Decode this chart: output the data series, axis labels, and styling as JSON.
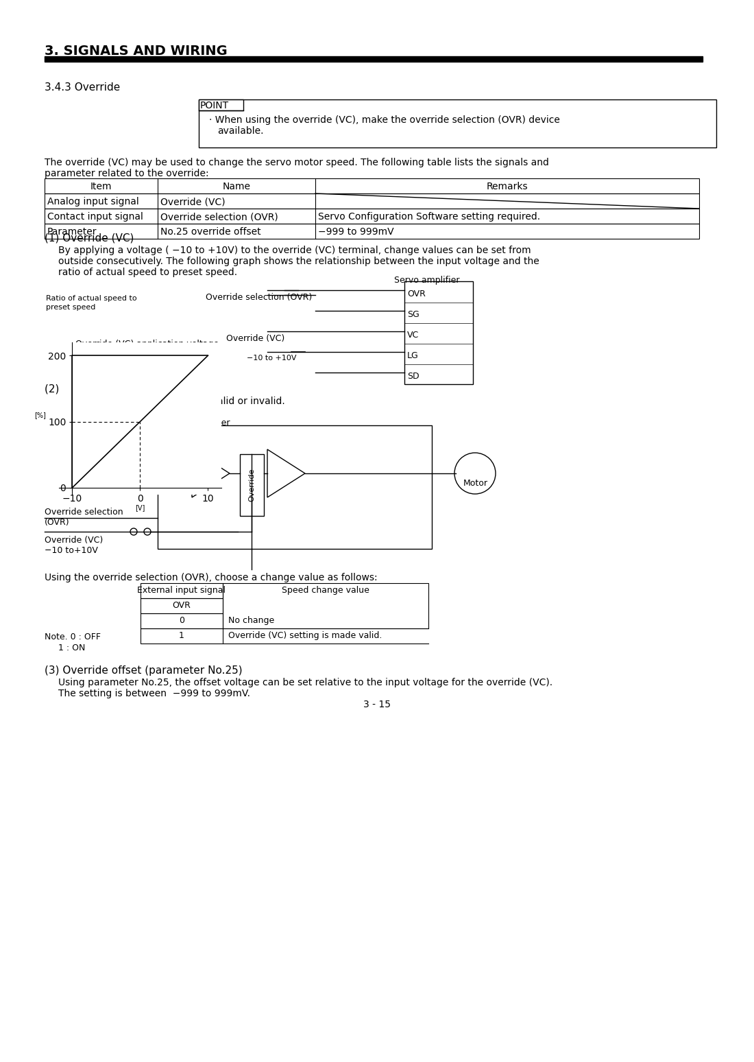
{
  "title": "3. SIGNALS AND WIRING",
  "section": "3.4.3 Override",
  "point_text": "When using the override (VC), make the override selection (OVR) device\navailable.",
  "para1_title": "The override (VC) may be used to change the servo motor speed. The following table lists the signals and",
  "para1_cont": "parameter related to the override:",
  "table1_headers": [
    "Item",
    "Name",
    "Remarks"
  ],
  "table1_rows": [
    [
      "Analog input signal",
      "Override (VC)",
      ""
    ],
    [
      "Contact input signal",
      "Override selection (OVR)",
      "Servo Configuration Software setting required."
    ],
    [
      "Parameter",
      "No.25 override offset",
      "−999 to 999mV"
    ]
  ],
  "section1_title": "(1) Override (VC)",
  "section1_para": "By applying a voltage ( −10 to +10V) to the override (VC) terminal, change values can be set from\noutside consecutively. The following graph shows the relationship between the input voltage and the\nratio of actual speed to preset speed.",
  "graph_ylabel": "Ratio of actual speed to\npreset speed",
  "graph_xlabel": "Override (VC) application voltage",
  "graph_yticks": [
    "0",
    "100",
    "200"
  ],
  "graph_xticks": [
    "−10",
    "0",
    "10"
  ],
  "graph_xunit": "[V]",
  "graph_yunit": "[%]",
  "servo_amp_label": "Servo amplifier",
  "connector_labels": [
    "OVR",
    "SG",
    "VC",
    "LG",
    "SD"
  ],
  "override_selection_label": "Override selection (OVR)",
  "override_vc_label": "Override (VC)",
  "voltage_label": "−10 to +10V",
  "section2_title": "(2) Override selection (OVR)",
  "section2_para": "Used to make the override (VC) valid or invalid.",
  "servo_amp_label2": "Servo amplifier",
  "motor_label": "Motor",
  "override_box_label": "Override",
  "ovr_sel_label": "Override selection\n(OVR)",
  "override_vc_label2": "Override (VC)\n−10 to+10V",
  "table2_title": "Using the override selection (OVR), choose a change value as follows:",
  "table2_header1": "External input signal",
  "table2_header2": "OVR",
  "table2_header3": "Speed change value",
  "table2_rows": [
    [
      "0",
      "No change"
    ],
    [
      "1",
      "Override (VC) setting is made valid."
    ]
  ],
  "note_text": "Note. 0 : OFF\n     1 : ON",
  "section3_title": "(3) Override offset (parameter No.25)",
  "section3_para": "Using parameter No.25, the offset voltage can be set relative to the input voltage for the override (VC).\nThe setting is between  −999 to 999mV.",
  "page_number": "3 - 15",
  "bg_color": "#ffffff",
  "text_color": "#000000"
}
